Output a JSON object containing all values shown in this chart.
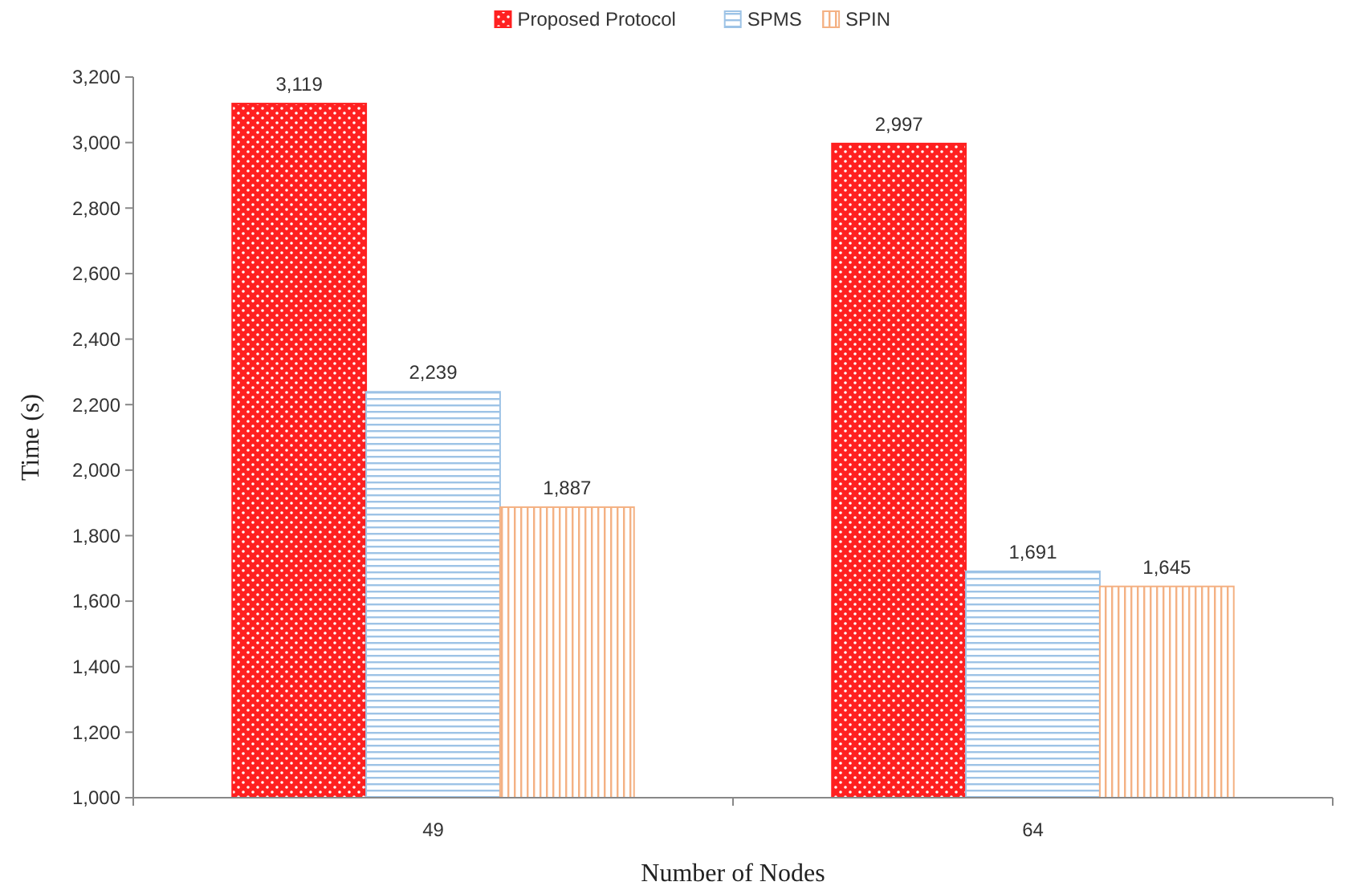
{
  "chart_data": {
    "type": "bar",
    "xlabel": "Number of Nodes",
    "ylabel": "Time (s)",
    "categories": [
      "49",
      "64"
    ],
    "series": [
      {
        "name": "Proposed Protocol",
        "color": "#ff2020",
        "values": [
          3119,
          2997
        ],
        "value_labels": [
          "3,119",
          "2,997"
        ]
      },
      {
        "name": "SPMS",
        "color": "#9dc3e6",
        "values": [
          2239,
          1691
        ],
        "value_labels": [
          "2,239",
          "1,691"
        ]
      },
      {
        "name": "SPIN",
        "color": "#f4b183",
        "values": [
          1887,
          1645
        ],
        "value_labels": [
          "1,887",
          "1,645"
        ]
      }
    ],
    "ylim": [
      1000,
      3200
    ],
    "yticks": [
      {
        "value": 1000,
        "label": "1,000"
      },
      {
        "value": 1200,
        "label": "1,200"
      },
      {
        "value": 1400,
        "label": "1,400"
      },
      {
        "value": 1600,
        "label": "1,600"
      },
      {
        "value": 1800,
        "label": "1,800"
      },
      {
        "value": 2000,
        "label": "2,000"
      },
      {
        "value": 2200,
        "label": "2,200"
      },
      {
        "value": 2400,
        "label": "2,400"
      },
      {
        "value": 2600,
        "label": "2,600"
      },
      {
        "value": 2800,
        "label": "2,800"
      },
      {
        "value": 3000,
        "label": "3,000"
      },
      {
        "value": 3200,
        "label": "3,200"
      }
    ],
    "legend": "top",
    "grid": false
  }
}
